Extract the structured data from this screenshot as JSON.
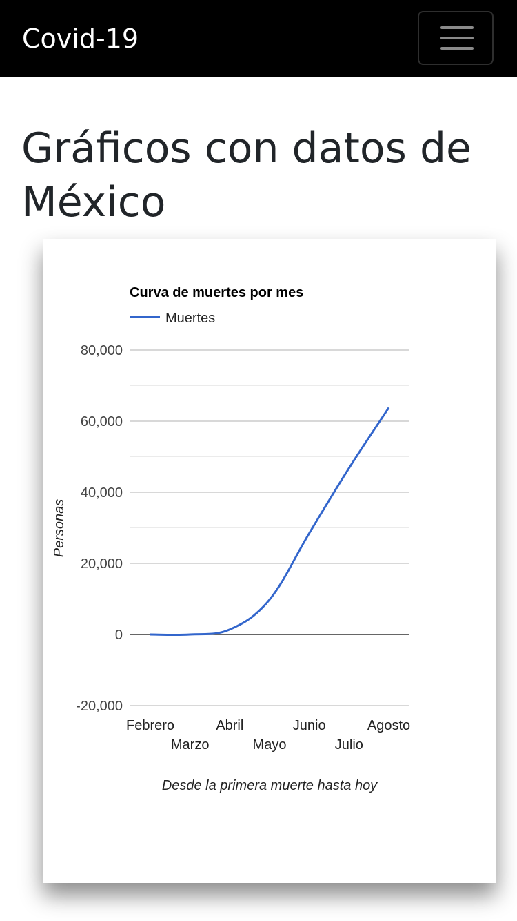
{
  "navbar": {
    "brand": "Covid-19",
    "menu_icon": "hamburger-menu-icon"
  },
  "page": {
    "title": "Gráficos con datos de México"
  },
  "colors": {
    "navbar_bg": "#000000",
    "series_line": "#3366cc",
    "gridline": "#cccccc",
    "minor_gridline": "#ebebeb",
    "zero_line": "#333333"
  },
  "chart_data": {
    "type": "line",
    "title": "Curva de muertes por mes",
    "xlabel": "Desde la primera muerte hasta hoy",
    "ylabel": "Personas",
    "categories": [
      "Febrero",
      "Marzo",
      "Abril",
      "Mayo",
      "Junio",
      "Julio",
      "Agosto"
    ],
    "series": [
      {
        "name": "Muertes",
        "values": [
          0,
          0,
          1400,
          9800,
          28500,
          46800,
          63800
        ]
      }
    ],
    "ylim": [
      -20000,
      80000
    ],
    "yticks": [
      -20000,
      0,
      20000,
      40000,
      60000,
      80000
    ],
    "ytick_labels": [
      "-20,000",
      "0",
      "20,000",
      "40,000",
      "60,000",
      "80,000"
    ],
    "grid": true,
    "legend": "top-left"
  }
}
